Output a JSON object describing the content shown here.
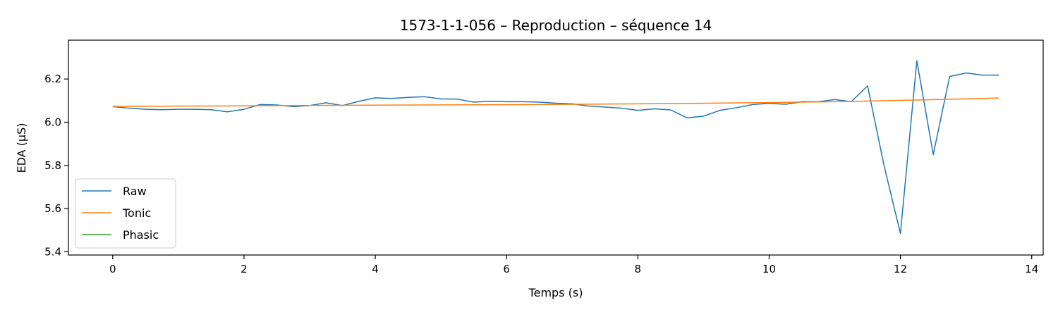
{
  "chart_data": {
    "type": "line",
    "title": "1573-1-1-056 – Reproduction – séquence 14",
    "xlabel": "Temps (s)",
    "ylabel": "EDA (µS)",
    "xlim": [
      -0.675,
      14.175
    ],
    "ylim": [
      5.385,
      6.38
    ],
    "xticks": [
      0,
      2,
      4,
      6,
      8,
      10,
      12,
      14
    ],
    "yticks": [
      5.4,
      5.6,
      5.8,
      6.0,
      6.2
    ],
    "xtick_labels": [
      "0",
      "2",
      "4",
      "6",
      "8",
      "10",
      "12",
      "14"
    ],
    "ytick_labels": [
      "5.4",
      "5.6",
      "5.8",
      "6.0",
      "6.2"
    ],
    "grid": false,
    "legend_position": "lower-left",
    "series": [
      {
        "name": "Raw",
        "color": "#1f77b4",
        "x": [
          0,
          0.25,
          0.5,
          0.75,
          1.0,
          1.25,
          1.5,
          1.75,
          2.0,
          2.25,
          2.5,
          2.75,
          3.0,
          3.25,
          3.5,
          3.75,
          4.0,
          4.25,
          4.5,
          4.75,
          5.0,
          5.25,
          5.5,
          5.75,
          6.0,
          6.25,
          6.5,
          6.75,
          7.0,
          7.25,
          7.5,
          7.75,
          8.0,
          8.25,
          8.5,
          8.75,
          9.0,
          9.25,
          9.5,
          9.75,
          10.0,
          10.25,
          10.5,
          10.75,
          11.0,
          11.25,
          11.5,
          11.75,
          12.0,
          12.25,
          12.5,
          12.75,
          13.0,
          13.25,
          13.5
        ],
        "y": [
          6.072,
          6.065,
          6.06,
          6.058,
          6.06,
          6.06,
          6.058,
          6.048,
          6.06,
          6.082,
          6.08,
          6.072,
          6.077,
          6.09,
          6.077,
          6.097,
          6.113,
          6.11,
          6.115,
          6.118,
          6.108,
          6.107,
          6.093,
          6.097,
          6.095,
          6.095,
          6.093,
          6.088,
          6.085,
          6.075,
          6.07,
          6.065,
          6.055,
          6.062,
          6.057,
          6.02,
          6.028,
          6.055,
          6.067,
          6.082,
          6.087,
          6.083,
          6.095,
          6.095,
          6.105,
          6.095,
          6.168,
          5.8,
          5.485,
          6.285,
          5.85,
          6.212,
          6.228,
          6.218,
          6.218
        ]
      },
      {
        "name": "Tonic",
        "color": "#ff7f0e",
        "x": [
          0,
          2,
          4,
          6,
          8,
          10,
          11,
          12,
          13,
          13.5
        ],
        "y": [
          6.073,
          6.076,
          6.079,
          6.081,
          6.085,
          6.091,
          6.095,
          6.101,
          6.108,
          6.112
        ]
      },
      {
        "name": "Phasic",
        "color": "#2ca02c",
        "x": [],
        "y": []
      }
    ]
  }
}
